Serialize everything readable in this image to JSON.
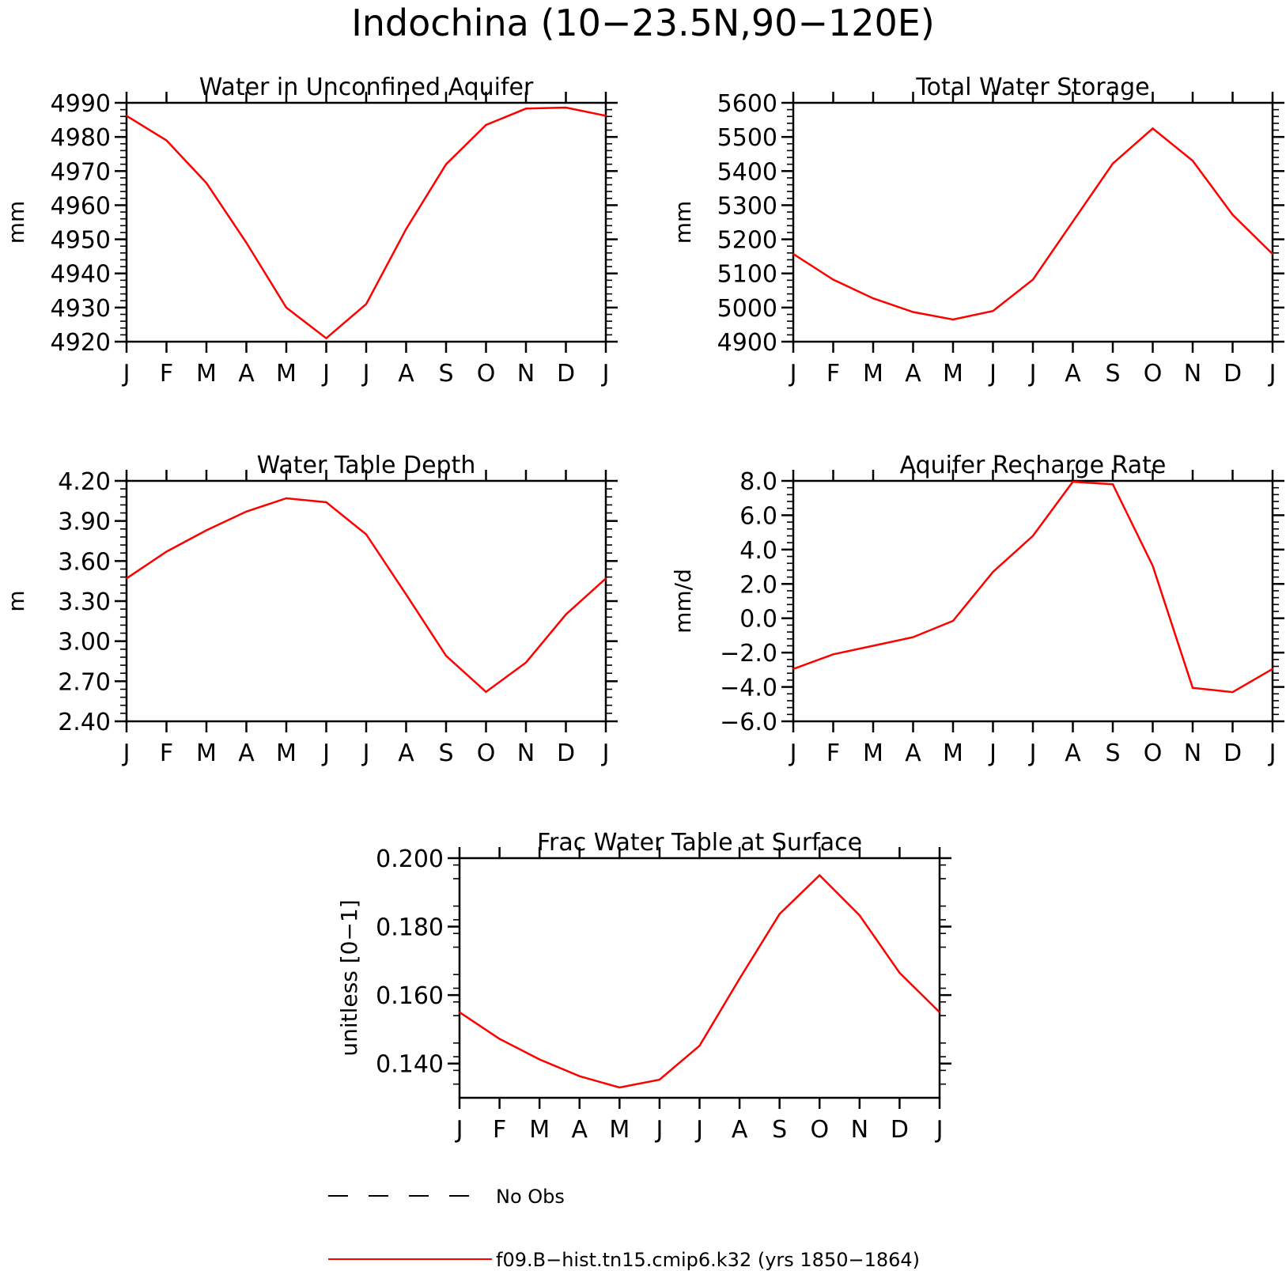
{
  "title": "Indochina (10−23.5N,90−120E)",
  "month_labels": [
    "J",
    "F",
    "M",
    "A",
    "M",
    "J",
    "J",
    "A",
    "S",
    "O",
    "N",
    "D",
    "J"
  ],
  "colors": {
    "model": "#ff0000",
    "obs": "#000000",
    "axes": "#000000"
  },
  "legend": {
    "obs_label": "No Obs",
    "model_label": "f09.B−hist.tn15.cmip6.k32 (yrs 1850−1864)"
  },
  "chart_data": [
    {
      "type": "line",
      "title": "Water in Unconfined Aquifer",
      "ylabel": "mm",
      "xlabel": "",
      "ylim": [
        4920,
        4990
      ],
      "yticks": [
        4920,
        4930,
        4940,
        4950,
        4960,
        4970,
        4980,
        4990
      ],
      "ytick_labels": [
        "4920",
        "4930",
        "4940",
        "4950",
        "4960",
        "4970",
        "4980",
        "4990"
      ],
      "series": [
        {
          "values": [
            4986.2,
            4979.0,
            4966.5,
            4949.0,
            4930.0,
            4921.0,
            4931.0,
            4953.0,
            4972.0,
            4983.5,
            4988.3,
            4988.6,
            4986.2
          ]
        }
      ]
    },
    {
      "type": "line",
      "title": "Total Water Storage",
      "ylabel": "mm",
      "xlabel": "",
      "ylim": [
        4900,
        5600
      ],
      "yticks": [
        4900,
        5000,
        5100,
        5200,
        5300,
        5400,
        5500,
        5600
      ],
      "ytick_labels": [
        "4900",
        "5000",
        "5100",
        "5200",
        "5300",
        "5400",
        "5500",
        "5600"
      ],
      "series": [
        {
          "values": [
            5157,
            5082,
            5027,
            4987,
            4965,
            4990,
            5082,
            5252,
            5422,
            5525,
            5430,
            5272,
            5157
          ]
        }
      ]
    },
    {
      "type": "line",
      "title": "Water Table Depth",
      "ylabel": "m",
      "xlabel": "",
      "ylim": [
        2.4,
        4.2
      ],
      "yticks": [
        2.4,
        2.7,
        3.0,
        3.3,
        3.6,
        3.9,
        4.2
      ],
      "ytick_labels": [
        "2.40",
        "2.70",
        "3.00",
        "3.30",
        "3.60",
        "3.90",
        "4.20"
      ],
      "series": [
        {
          "values": [
            3.47,
            3.67,
            3.83,
            3.97,
            4.07,
            4.04,
            3.8,
            3.35,
            2.89,
            2.62,
            2.84,
            3.2,
            3.47
          ]
        }
      ]
    },
    {
      "type": "line",
      "title": "Aquifer Recharge Rate",
      "ylabel": "mm/d",
      "xlabel": "",
      "ylim": [
        -6.0,
        8.0
      ],
      "yticks": [
        -6.0,
        -4.0,
        -2.0,
        0.0,
        2.0,
        4.0,
        6.0,
        8.0
      ],
      "ytick_labels": [
        "−6.0",
        "−4.0",
        "−2.0",
        "0.0",
        "2.0",
        "4.0",
        "6.0",
        "8.0"
      ],
      "series": [
        {
          "values": [
            -2.95,
            -2.1,
            -1.6,
            -1.1,
            -0.15,
            2.7,
            4.8,
            7.95,
            7.8,
            3.05,
            -4.05,
            -4.3,
            -2.95
          ]
        }
      ]
    },
    {
      "type": "line",
      "title": "Frac Water Table at Surface",
      "ylabel": "unitless [0−1]",
      "xlabel": "",
      "ylim": [
        0.13,
        0.2
      ],
      "yticks": [
        0.14,
        0.16,
        0.18,
        0.2
      ],
      "ytick_labels": [
        "0.140",
        "0.160",
        "0.180",
        "0.200"
      ],
      "series": [
        {
          "values": [
            0.155,
            0.1472,
            0.1412,
            0.1363,
            0.133,
            0.1353,
            0.1452,
            0.1648,
            0.1837,
            0.195,
            0.1833,
            0.1665,
            0.155
          ]
        }
      ]
    }
  ]
}
